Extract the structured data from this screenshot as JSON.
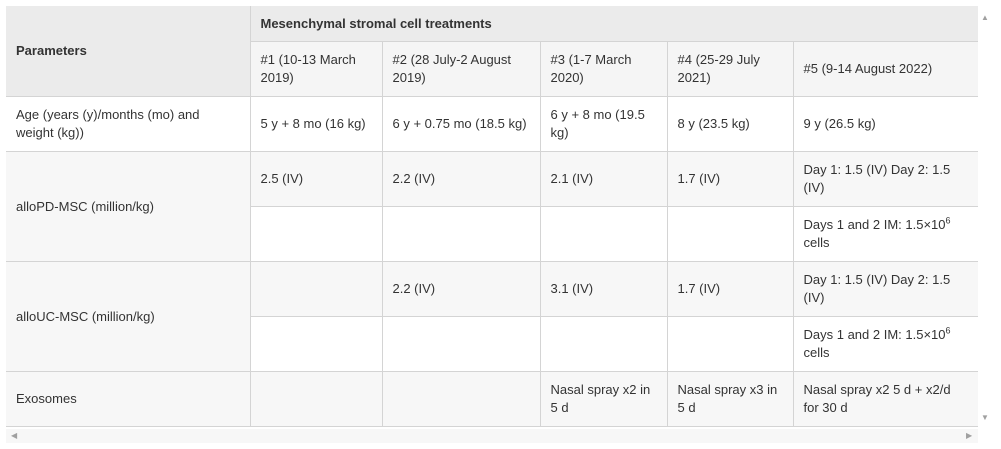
{
  "table": {
    "param_header": "Parameters",
    "group_header": "Mesenchymal stromal cell treatments",
    "columns": [
      "#1 (10-13 March 2019)",
      "#2 (28 July-2 August 2019)",
      "#3 (1-7 March 2020)",
      "#4 (25-29 July 2021)",
      "#5 (9-14 August 2022)"
    ],
    "rows": {
      "age": {
        "label": "Age (years (y)/months (mo) and weight (kg))",
        "cells": [
          "5 y + 8 mo (16 kg)",
          "6 y + 0.75 mo (18.5 kg)",
          "6 y + 8 mo (19.5 kg)",
          "8 y (23.5 kg)",
          "9 y (26.5 kg)"
        ]
      },
      "allopd": {
        "label": "alloPD-MSC (million/kg)",
        "iv": [
          "2.5 (IV)",
          "2.2 (IV)",
          "2.1 (IV)",
          "1.7 (IV)",
          "Day 1: 1.5 (IV) Day 2: 1.5 (IV)"
        ],
        "im": [
          "",
          "",
          "",
          "",
          "Days 1 and 2 IM: 1.5×10"
        ],
        "im_sup": "6",
        "im_tail": " cells"
      },
      "allouc": {
        "label": "alloUC-MSC (million/kg)",
        "iv": [
          "",
          "2.2 (IV)",
          "3.1 (IV)",
          "1.7 (IV)",
          "Day 1: 1.5 (IV) Day 2: 1.5 (IV)"
        ],
        "im": [
          "",
          "",
          "",
          "",
          "Days 1 and 2 IM: 1.5×10"
        ],
        "im_sup": "6",
        "im_tail": " cells"
      },
      "exosomes": {
        "label": "Exosomes",
        "cells": [
          "",
          "",
          "Nasal spray x2 in 5 d",
          "Nasal spray x3 in 5 d",
          "Nasal spray x2 5 d + x2/d for 30 d"
        ]
      }
    }
  },
  "scrollbars": {
    "up_icon": "triangle-up",
    "down_icon": "triangle-down",
    "left_icon": "triangle-left",
    "right_icon": "triangle-right"
  }
}
